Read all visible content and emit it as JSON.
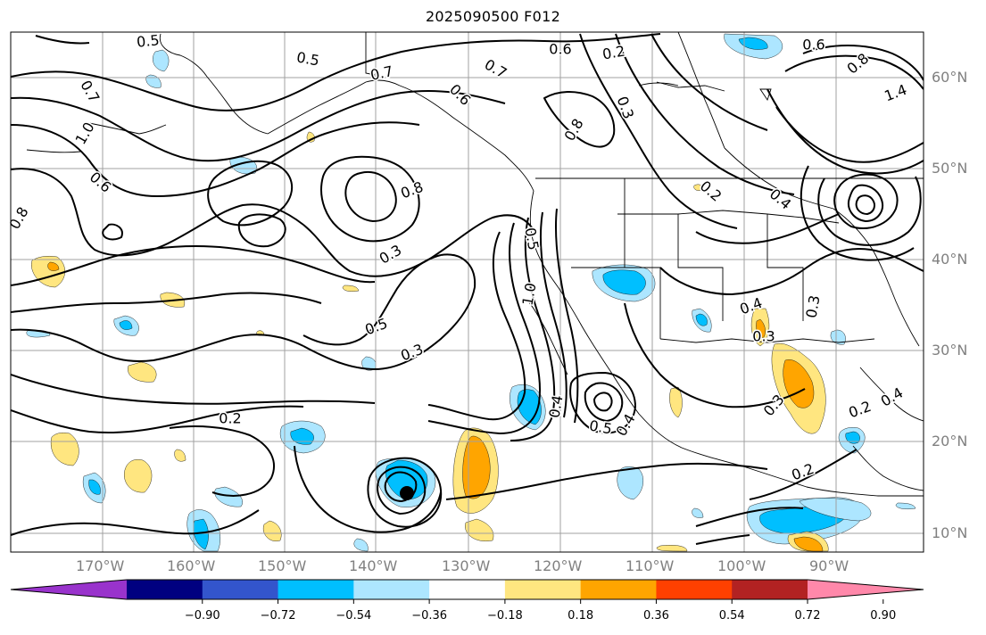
{
  "title": "2025090500 F012",
  "latitude_labels": [
    "60°N",
    "50°N",
    "40°N",
    "30°N",
    "20°N",
    "10°N"
  ],
  "longitude_labels": [
    "170°W",
    "160°W",
    "150°W",
    "140°W",
    "130°W",
    "120°W",
    "110°W",
    "100°W",
    "90°W"
  ],
  "contour_labels": [
    "0.5",
    "0.5",
    "0.7",
    "0.6",
    "0.7",
    "0.2",
    "0.6",
    "0.8",
    "1.4",
    "0.7",
    "1.0",
    "0.6",
    "0.8",
    "0.3",
    "0.6",
    "0.8",
    "0.2",
    "0.4",
    "0.8",
    "0.5",
    "0.3",
    "1.0",
    "0.5",
    "0.3",
    "0.4",
    "0.5",
    "0.4",
    "0.2",
    "0.3",
    "0.2",
    "0.4",
    "0.3",
    "0.4",
    "0.3",
    "0.2"
  ],
  "colorbar": {
    "extend": "both",
    "tick_labels": [
      "−0.90",
      "−0.72",
      "−0.54",
      "−0.36",
      "−0.18",
      "0.18",
      "0.36",
      "0.54",
      "0.72",
      "0.90"
    ],
    "colors": [
      "#9933cc",
      "#000080",
      "#3355cc",
      "#00bfff",
      "#ade6ff",
      "#ffffff",
      "#ffe680",
      "#ffa500",
      "#ff4000",
      "#b22222",
      "#ff88aa"
    ]
  },
  "shading_colors": {
    "light_blue": "#ade6ff",
    "blue": "#00bfff",
    "yellow": "#ffe680",
    "orange": "#ffa500"
  }
}
